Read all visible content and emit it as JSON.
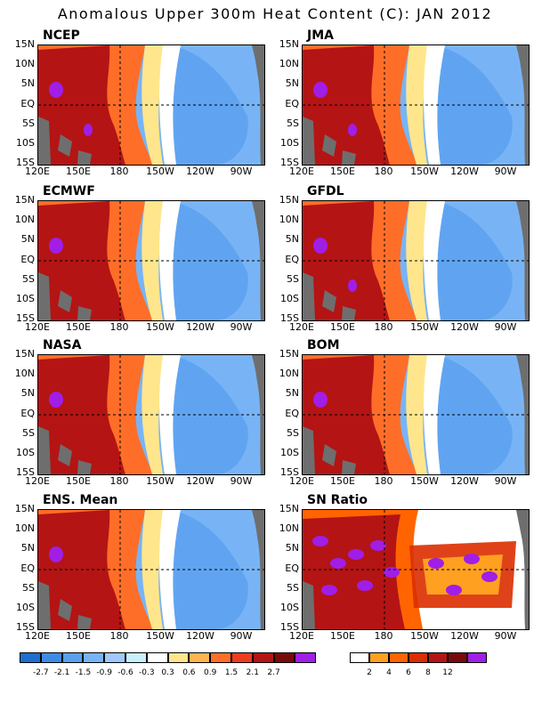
{
  "title": "Anomalous Upper 300m Heat Content (C): JAN 2012",
  "panels": [
    {
      "label": "NCEP",
      "kind": "anom"
    },
    {
      "label": "JMA",
      "kind": "anom"
    },
    {
      "label": "ECMWF",
      "kind": "anom"
    },
    {
      "label": "GFDL",
      "kind": "anom"
    },
    {
      "label": "NASA",
      "kind": "anom"
    },
    {
      "label": "BOM",
      "kind": "anom"
    },
    {
      "label": "ENS. Mean",
      "kind": "anom"
    },
    {
      "label": "SN Ratio",
      "kind": "snr"
    }
  ],
  "lat_labels": [
    "15N",
    "10N",
    "5N",
    "EQ",
    "5S",
    "10S",
    "15S"
  ],
  "lon_labels": [
    "120E",
    "150E",
    "180",
    "150W",
    "120W",
    "90W"
  ],
  "anomaly_colorbar": {
    "labels": [
      "-2.7",
      "-2.1",
      "-1.5",
      "-0.9",
      "-0.6",
      "-0.3",
      "0.3",
      "0.6",
      "0.9",
      "1.5",
      "2.1",
      "2.7"
    ],
    "colors": [
      "#1e6ed0",
      "#3c8ce6",
      "#5aa0f0",
      "#78b4f5",
      "#a0c8fa",
      "#c8f0fa",
      "#ffffff",
      "#ffe68c",
      "#ffb450",
      "#ff6e28",
      "#f03c1e",
      "#b41414",
      "#7a0a0a",
      "#a01ee6"
    ]
  },
  "snr_colorbar": {
    "labels": [
      "2",
      "4",
      "6",
      "8",
      "12"
    ],
    "colors": [
      "#ffffff",
      "#ffa020",
      "#ff6400",
      "#dc2d00",
      "#b41414",
      "#7a0a0a",
      "#a01ee6"
    ]
  },
  "colors": {
    "land": "#6e6e6e",
    "strong_warm": "#b41414",
    "warm": "#ff6e28",
    "cool": "#78b4f5",
    "very_cool": "#5aa0f0",
    "extreme": "#a01ee6"
  }
}
